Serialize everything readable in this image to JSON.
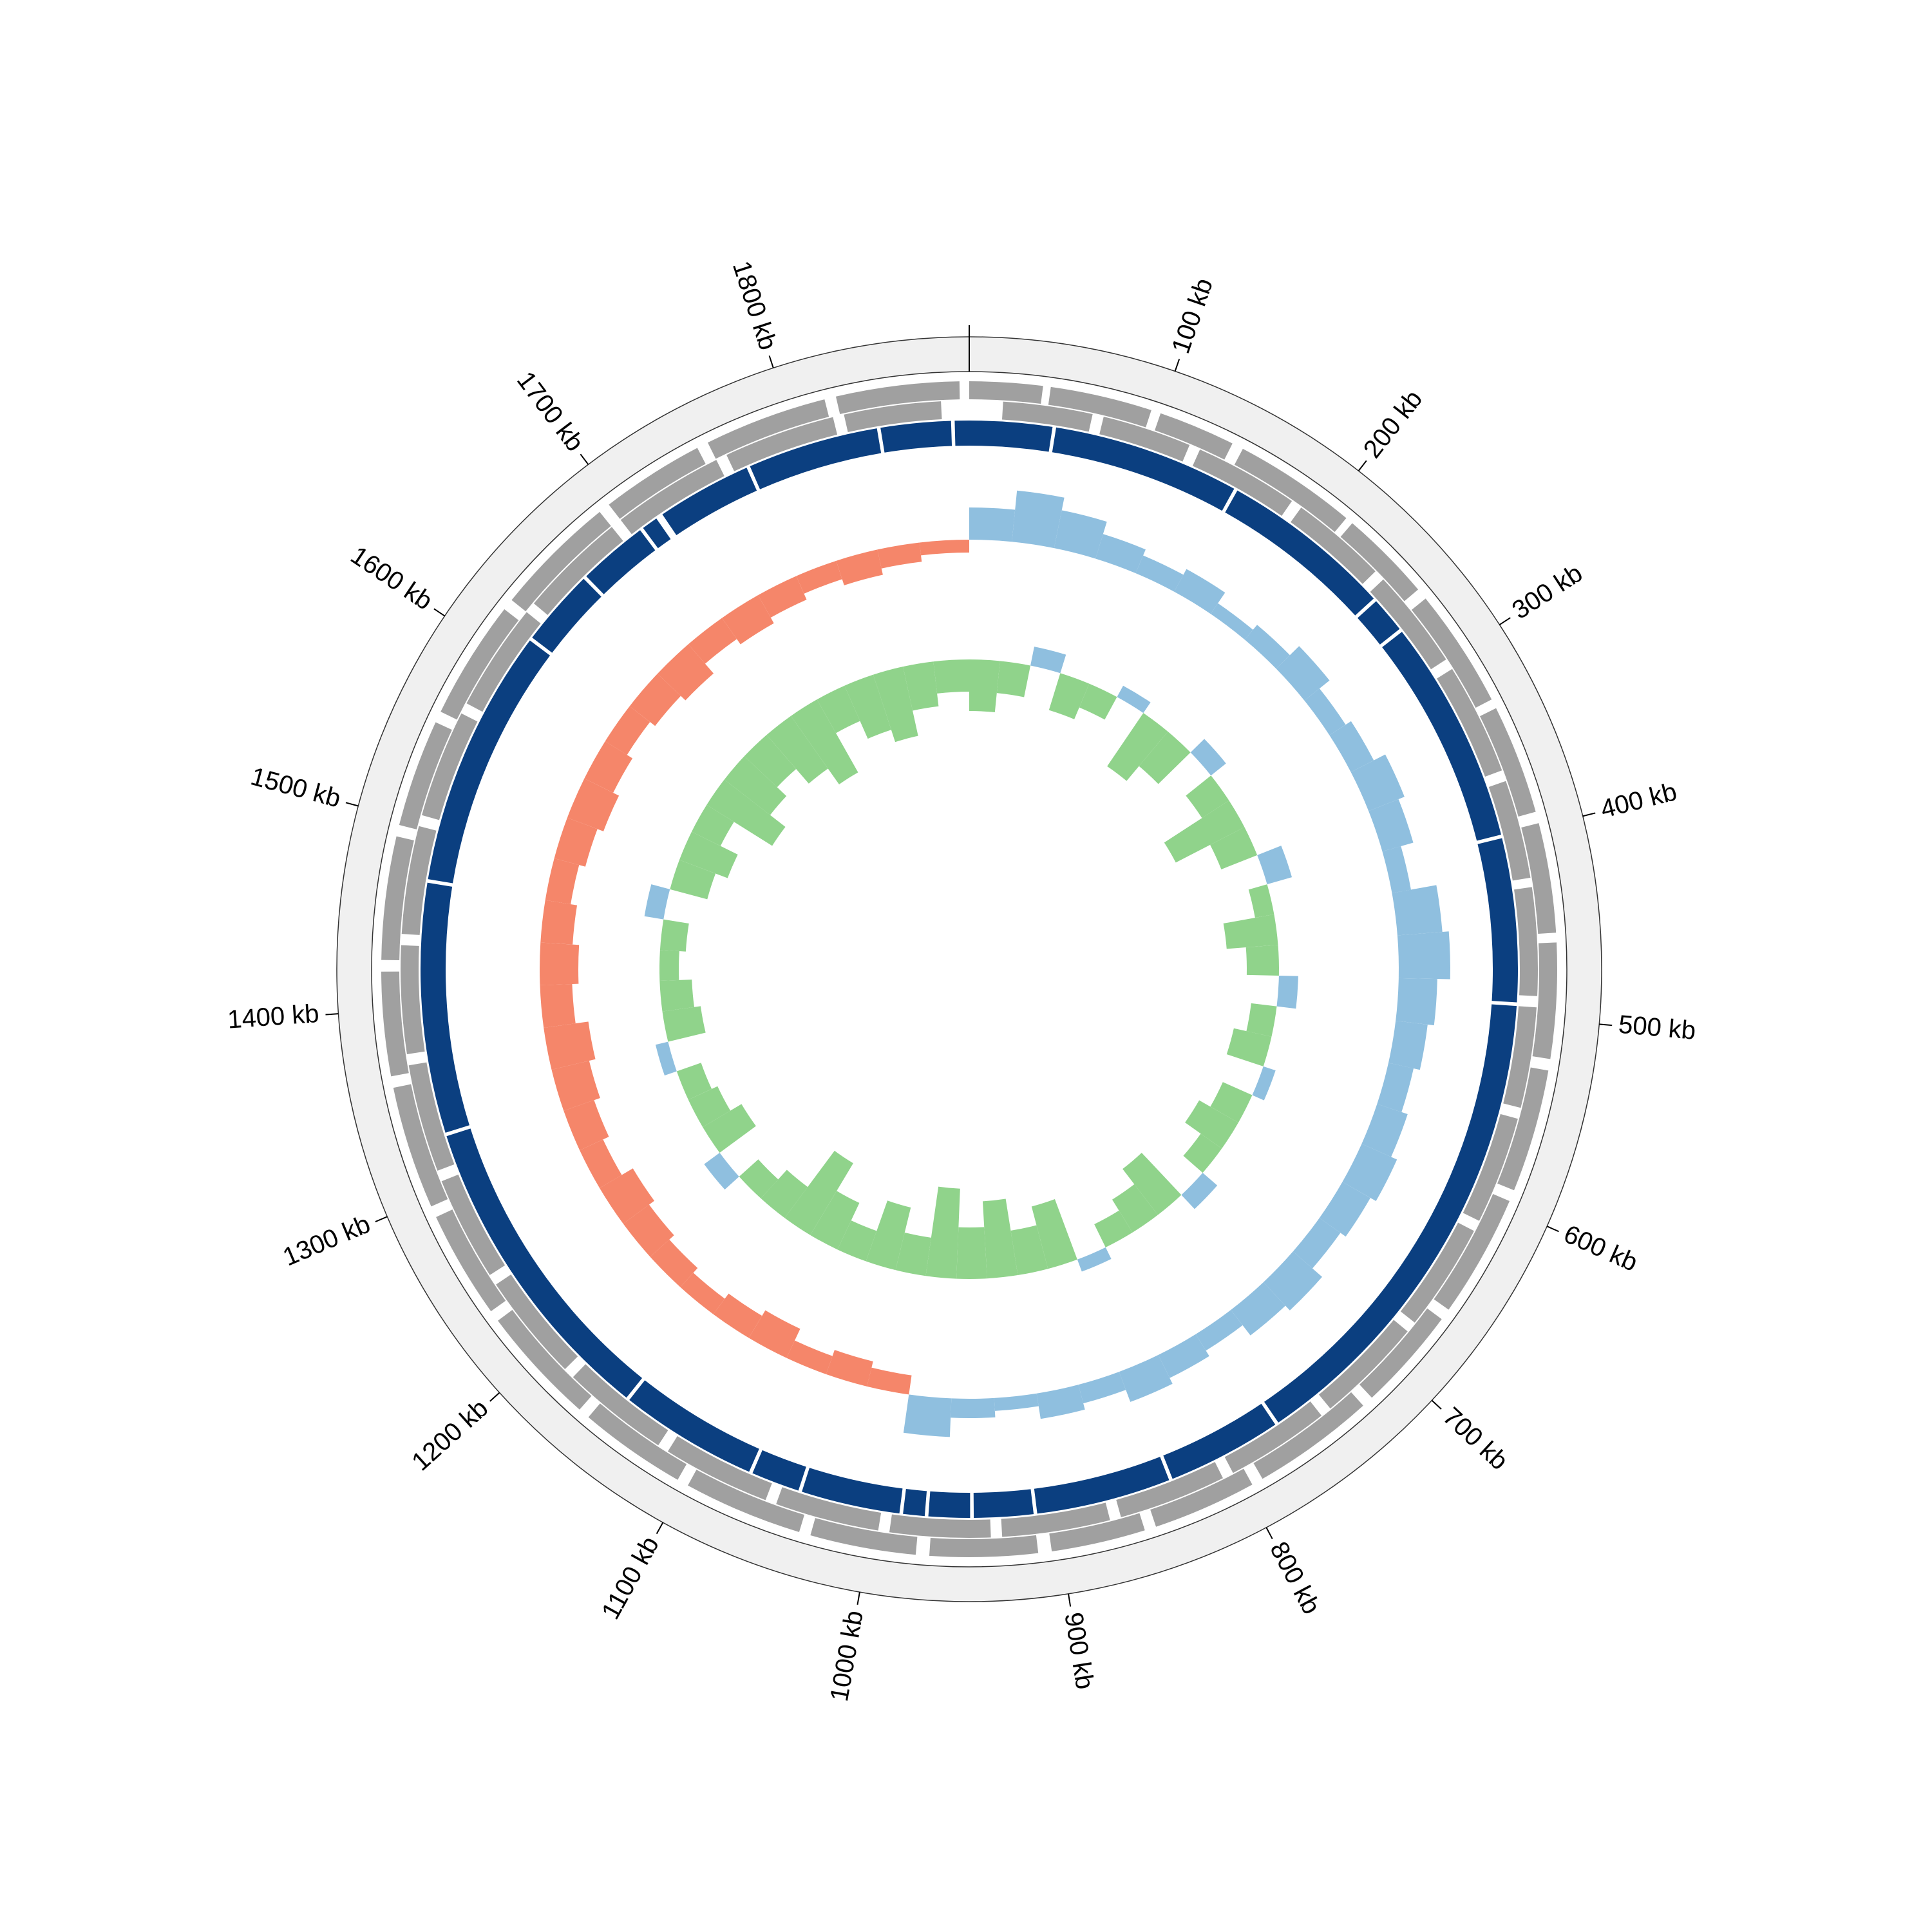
{
  "chart_data": {
    "type": "circos",
    "xlim": [
      0,
      1895
    ],
    "xticks": [
      {
        "value": 100,
        "label": "100 kb"
      },
      {
        "value": 200,
        "label": "200 kb"
      },
      {
        "value": 300,
        "label": "300 kb"
      },
      {
        "value": 400,
        "label": "400 kb"
      },
      {
        "value": 500,
        "label": "500 kb"
      },
      {
        "value": 600,
        "label": "600 kb"
      },
      {
        "value": 700,
        "label": "700 kb"
      },
      {
        "value": 800,
        "label": "800 kb"
      },
      {
        "value": 900,
        "label": "900 kb"
      },
      {
        "value": 1000,
        "label": "1000 kb"
      },
      {
        "value": 1100,
        "label": "1100 kb"
      },
      {
        "value": 1200,
        "label": "1200 kb"
      },
      {
        "value": 1300,
        "label": "1300 kb"
      },
      {
        "value": 1400,
        "label": "1400 kb"
      },
      {
        "value": 1500,
        "label": "1500 kb"
      },
      {
        "value": 1600,
        "label": "1600 kb"
      },
      {
        "value": 1700,
        "label": "1700 kb"
      },
      {
        "value": 1800,
        "label": "1800 kb"
      }
    ],
    "contig_color": "#0b3f80",
    "contigs": [
      [
        0,
        46
      ],
      [
        48,
        152
      ],
      [
        154,
        250
      ],
      [
        252,
        272
      ],
      [
        274,
        399
      ],
      [
        401,
        492
      ],
      [
        494,
        767
      ],
      [
        769,
        833
      ],
      [
        835,
        910
      ],
      [
        912,
        945
      ],
      [
        947,
        970
      ],
      [
        972,
        984
      ],
      [
        986,
        1041
      ],
      [
        1043,
        1070
      ],
      [
        1072,
        1149
      ],
      [
        1151,
        1328
      ],
      [
        1330,
        1469
      ],
      [
        1471,
        1615
      ],
      [
        1617,
        1660
      ],
      [
        1662,
        1701
      ],
      [
        1703,
        1712
      ],
      [
        1716,
        1769
      ],
      [
        1771,
        1844
      ],
      [
        1846,
        1885
      ],
      [
        1887,
        1895
      ]
    ],
    "gene_color": "#a0a0a0",
    "genes_forward": [
      [
        0,
        38
      ],
      [
        42,
        95
      ],
      [
        100,
        140
      ],
      [
        146,
        210
      ],
      [
        214,
        262
      ],
      [
        268,
        330
      ],
      [
        335,
        392
      ],
      [
        398,
        455
      ],
      [
        460,
        520
      ],
      [
        526,
        590
      ],
      [
        596,
        660
      ],
      [
        666,
        720
      ],
      [
        726,
        790
      ],
      [
        796,
        850
      ],
      [
        856,
        905
      ],
      [
        912,
        968
      ],
      [
        975,
        1030
      ],
      [
        1036,
        1098
      ],
      [
        1104,
        1160
      ],
      [
        1166,
        1228
      ],
      [
        1234,
        1290
      ],
      [
        1296,
        1360
      ],
      [
        1366,
        1420
      ],
      [
        1426,
        1490
      ],
      [
        1496,
        1552
      ],
      [
        1558,
        1620
      ],
      [
        1626,
        1690
      ],
      [
        1696,
        1750
      ],
      [
        1756,
        1820
      ],
      [
        1826,
        1890
      ]
    ],
    "genes_reverse": [
      [
        18,
        66
      ],
      [
        72,
        120
      ],
      [
        126,
        182
      ],
      [
        188,
        240
      ],
      [
        246,
        300
      ],
      [
        306,
        366
      ],
      [
        372,
        425
      ],
      [
        430,
        488
      ],
      [
        494,
        548
      ],
      [
        554,
        612
      ],
      [
        618,
        676
      ],
      [
        682,
        740
      ],
      [
        746,
        802
      ],
      [
        808,
        866
      ],
      [
        872,
        930
      ],
      [
        936,
        990
      ],
      [
        996,
        1052
      ],
      [
        1058,
        1116
      ],
      [
        1122,
        1180
      ],
      [
        1186,
        1244
      ],
      [
        1250,
        1306
      ],
      [
        1312,
        1370
      ],
      [
        1376,
        1434
      ],
      [
        1440,
        1498
      ],
      [
        1504,
        1562
      ],
      [
        1568,
        1626
      ],
      [
        1632,
        1690
      ],
      [
        1696,
        1756
      ],
      [
        1762,
        1822
      ],
      [
        1828,
        1880
      ]
    ],
    "tracks": [
      {
        "positive_color": "#8fbfdf",
        "negative_color": "#f5866a",
        "x": [
          0,
          30,
          60,
          90,
          120,
          150,
          180,
          210,
          240,
          270,
          300,
          330,
          360,
          390,
          420,
          450,
          480,
          510,
          540,
          570,
          600,
          630,
          660,
          690,
          720,
          750,
          780,
          810,
          840,
          870,
          900,
          930,
          960,
          990,
          1020,
          1050,
          1080,
          1110,
          1140,
          1170,
          1200,
          1230,
          1260,
          1290,
          1320,
          1350,
          1380,
          1410,
          1440,
          1470,
          1500,
          1530,
          1560,
          1590,
          1620,
          1650,
          1680,
          1710,
          1740,
          1770,
          1800,
          1830,
          1860
        ],
        "values": [
          0.05,
          0.08,
          0.06,
          0.04,
          0.03,
          0.04,
          0.02,
          0.03,
          0.05,
          0.03,
          0.04,
          0.06,
          0.05,
          0.03,
          0.07,
          0.08,
          0.06,
          0.05,
          0.04,
          0.05,
          0.06,
          0.05,
          0.04,
          0.06,
          0.05,
          0.03,
          0.04,
          0.05,
          0.03,
          0.04,
          0.02,
          0.03,
          0.06,
          -0.03,
          -0.04,
          -0.03,
          -0.05,
          -0.04,
          -0.03,
          -0.04,
          -0.05,
          -0.06,
          -0.04,
          -0.05,
          -0.06,
          -0.07,
          -0.05,
          -0.06,
          -0.05,
          -0.04,
          -0.05,
          -0.06,
          -0.05,
          -0.04,
          -0.05,
          -0.06,
          -0.04,
          -0.05,
          -0.04,
          -0.03,
          -0.04,
          -0.03,
          -0.02
        ]
      },
      {
        "positive_color": "#8fbfdf",
        "negative_color": "#90d38b",
        "x": [
          0,
          30,
          60,
          90,
          120,
          150,
          180,
          210,
          240,
          270,
          300,
          330,
          360,
          390,
          420,
          450,
          480,
          510,
          540,
          570,
          600,
          630,
          660,
          690,
          720,
          750,
          780,
          810,
          840,
          870,
          900,
          930,
          960,
          990,
          1020,
          1050,
          1080,
          1110,
          1140,
          1170,
          1200,
          1230,
          1260,
          1290,
          1320,
          1350,
          1380,
          1410,
          1440,
          1470,
          1500,
          1530,
          1560,
          1590,
          1620,
          1650,
          1680,
          1710,
          1740,
          1770,
          1800,
          1830,
          1860
        ],
        "values": [
          -0.08,
          -0.05,
          0.03,
          -0.06,
          -0.04,
          0.02,
          -0.1,
          -0.07,
          0.03,
          -0.05,
          -0.12,
          -0.06,
          0.04,
          -0.03,
          -0.08,
          -0.05,
          0.03,
          -0.04,
          -0.06,
          0.02,
          -0.05,
          -0.07,
          -0.04,
          0.03,
          -0.09,
          -0.06,
          -0.04,
          0.02,
          -0.1,
          -0.07,
          -0.12,
          -0.08,
          -0.14,
          -0.06,
          -0.1,
          -0.05,
          -0.08,
          -0.13,
          -0.06,
          -0.04,
          0.03,
          -0.07,
          -0.05,
          -0.04,
          0.02,
          -0.06,
          -0.05,
          -0.03,
          -0.04,
          0.03,
          -0.06,
          -0.08,
          -0.05,
          -0.12,
          -0.09,
          -0.07,
          -0.1,
          -0.13,
          -0.06,
          -0.09,
          -0.11,
          -0.07,
          -0.05
        ]
      }
    ]
  }
}
